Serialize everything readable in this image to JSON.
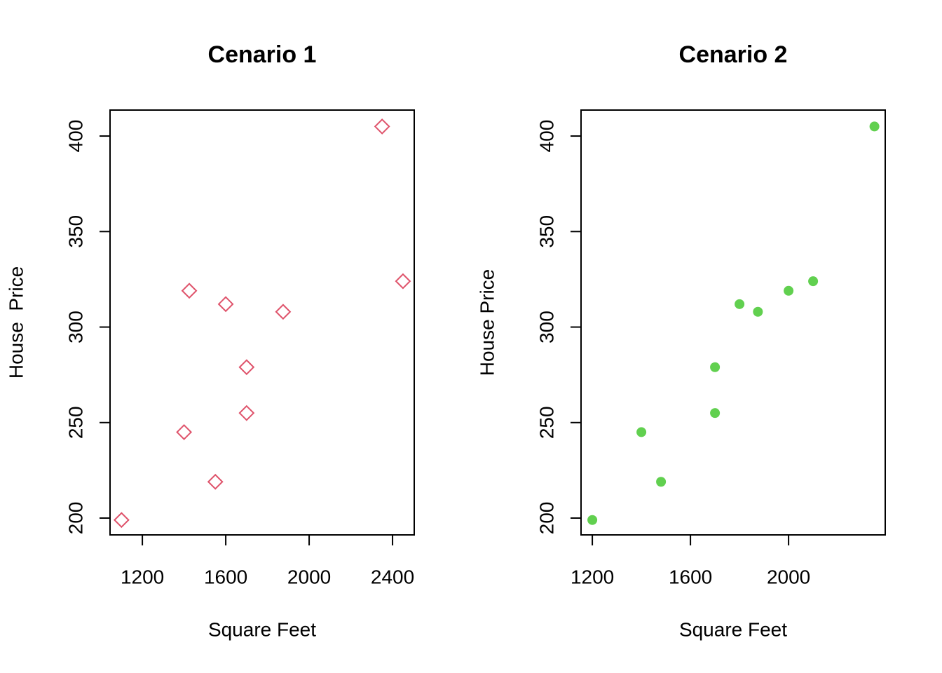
{
  "chart_data": [
    {
      "type": "scatter",
      "title": "Cenario 1",
      "x_label": "Square Feet",
      "y_label": "House  Price",
      "x": [
        1100,
        1400,
        1425,
        1550,
        1600,
        1700,
        1700,
        1875,
        2350,
        2450
      ],
      "values": [
        199,
        245,
        319,
        219,
        312,
        279,
        255,
        308,
        405,
        324
      ],
      "color": "#DF536B",
      "marker": "diamond",
      "xlim": [
        1045,
        2504
      ],
      "xticks": [
        1200,
        1600,
        2000,
        2400
      ],
      "ylim": [
        191.2,
        413.6
      ],
      "yticks": [
        200,
        250,
        300,
        350,
        400
      ]
    },
    {
      "type": "scatter",
      "title": "Cenario 2",
      "x_label": "Square Feet",
      "y_label": "House Price",
      "x": [
        1200,
        1400,
        1480,
        1700,
        1700,
        1800,
        1875,
        2000,
        2100,
        2350
      ],
      "values": [
        199,
        245,
        219,
        255,
        279,
        312,
        308,
        319,
        324,
        405
      ],
      "color": "#61D04F",
      "marker": "circle",
      "xlim": [
        1154,
        2394
      ],
      "xticks": [
        1200,
        1600,
        2000
      ],
      "ylim": [
        191.2,
        413.6
      ],
      "yticks": [
        200,
        250,
        300,
        350,
        400
      ]
    }
  ]
}
